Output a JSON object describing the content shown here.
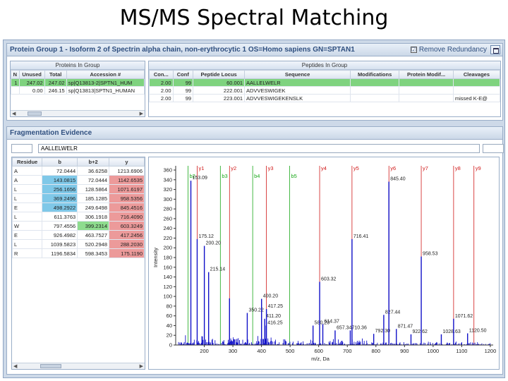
{
  "slide_title": "MS/MS Spectral Matching",
  "protein_window": {
    "title": "Protein Group 1 - Isoform 2 of Spectrin alpha chain, non-erythrocytic 1 OS=Homo sapiens GN=SPTAN1",
    "remove_redundancy_label": "Remove Redundancy",
    "remove_redundancy_checked": "☑",
    "proteins_panel_title": "Proteins In Group",
    "protein_columns": [
      "N",
      "Unused",
      "Total",
      "Accession #"
    ],
    "protein_rows": [
      [
        "1",
        "247.02",
        "247.02",
        "sp|Q13813-2|SPTN1_HUM"
      ],
      [
        "",
        "0.00",
        "246.15",
        "sp|Q13813|SPTN1_HUMAN"
      ]
    ],
    "peptides_panel_title": "Peptides In Group",
    "peptide_columns": [
      "Con...",
      "Conf",
      "Peptide Locus",
      "Sequence",
      "Modifications",
      "Protein Modif...",
      "Cleavages"
    ],
    "peptide_rows": [
      [
        "2.00",
        "99",
        "60.001",
        "AALLELWELR",
        "",
        "",
        ""
      ],
      [
        "2.00",
        "99",
        "222.001",
        "ADVVESWIGEK",
        "",
        "",
        ""
      ],
      [
        "2.00",
        "99",
        "223.001",
        "ADVVESWIGEKENSLK",
        "",
        "",
        "missed K-E@"
      ]
    ]
  },
  "frag_window": {
    "title": "Fragmentation Evidence",
    "sequence": "AALLELWELR",
    "columns": [
      "Residue",
      "b",
      "b+2",
      "y"
    ],
    "rows": [
      [
        "A",
        "72.0444",
        "36.6258",
        "1213.6906"
      ],
      [
        "A",
        "143.0815",
        "72.0444",
        "1142.6535"
      ],
      [
        "L",
        "256.1656",
        "128.5864",
        "1071.6197"
      ],
      [
        "L",
        "369.2496",
        "185.1285",
        "958.5356"
      ],
      [
        "E",
        "498.2922",
        "249.6498",
        "845.4516"
      ],
      [
        "L",
        "611.3763",
        "306.1918",
        "716.4090"
      ],
      [
        "W",
        "797.4556",
        "399.2314",
        "603.3249"
      ],
      [
        "E",
        "926.4982",
        "463.7527",
        "417.2456"
      ],
      [
        "L",
        "1039.5823",
        "520.2948",
        "288.2030"
      ],
      [
        "R",
        "1196.5834",
        "598.3453",
        "175.1190"
      ]
    ]
  },
  "chart_data": {
    "type": "bar",
    "title": "",
    "xlabel": "m/z, Da",
    "ylabel": "Intensity",
    "xlim": [
      100,
      1210
    ],
    "ylim": [
      0,
      360
    ],
    "xticks": [
      200,
      300,
      400,
      500,
      600,
      700,
      800,
      900,
      1000,
      1100,
      1200
    ],
    "yticks": [
      0,
      20,
      40,
      60,
      80,
      100,
      120,
      140,
      160,
      180,
      200,
      220,
      240,
      260,
      280,
      300,
      320,
      340,
      360
    ],
    "colors": {
      "peaks": "#1010c8",
      "y_lines": "#d01818",
      "b_lines": "#18a818",
      "labels": "#222222"
    },
    "ion_markers": [
      {
        "label": "y1",
        "x": 175.1,
        "color": "#d01818"
      },
      {
        "label": "y2",
        "x": 288.2,
        "color": "#d01818"
      },
      {
        "label": "y3",
        "x": 417.2,
        "color": "#d01818"
      },
      {
        "label": "y4",
        "x": 603.3,
        "color": "#d01818"
      },
      {
        "label": "y5",
        "x": 716.4,
        "color": "#d01818"
      },
      {
        "label": "y6",
        "x": 845.5,
        "color": "#d01818"
      },
      {
        "label": "y7",
        "x": 958.5,
        "color": "#d01818"
      },
      {
        "label": "y8",
        "x": 1071.6,
        "color": "#d01818"
      },
      {
        "label": "y9",
        "x": 1142.7,
        "color": "#d01818"
      },
      {
        "label": "b2",
        "x": 143.1,
        "color": "#18a818"
      },
      {
        "label": "b3",
        "x": 256.2,
        "color": "#18a818"
      },
      {
        "label": "b4",
        "x": 369.2,
        "color": "#18a818"
      },
      {
        "label": "b5",
        "x": 498.3,
        "color": "#18a818"
      }
    ],
    "peaks": [
      {
        "x": 153.09,
        "y": 338,
        "label": "153.09"
      },
      {
        "x": 175.12,
        "y": 218,
        "label": "175.12"
      },
      {
        "x": 200.2,
        "y": 204,
        "label": "200.20"
      },
      {
        "x": 215.14,
        "y": 150,
        "label": "215.14"
      },
      {
        "x": 288.2,
        "y": 96,
        "label": ""
      },
      {
        "x": 350.22,
        "y": 66,
        "label": "350.22"
      },
      {
        "x": 400.2,
        "y": 95,
        "label": "400.20"
      },
      {
        "x": 411.2,
        "y": 54,
        "label": "411.20"
      },
      {
        "x": 416.25,
        "y": 40,
        "label": "416.25"
      },
      {
        "x": 417.25,
        "y": 74,
        "label": "417.25"
      },
      {
        "x": 580.2,
        "y": 40,
        "label": "580.20"
      },
      {
        "x": 603.3,
        "y": 130,
        "label": "603.32"
      },
      {
        "x": 614.37,
        "y": 43,
        "label": "614.37"
      },
      {
        "x": 657.34,
        "y": 30,
        "label": "657.34"
      },
      {
        "x": 710.36,
        "y": 30,
        "label": "710.36"
      },
      {
        "x": 716.41,
        "y": 218,
        "label": "716.41"
      },
      {
        "x": 792.3,
        "y": 23,
        "label": "792.30"
      },
      {
        "x": 827.44,
        "y": 62,
        "label": "827.44"
      },
      {
        "x": 845.4,
        "y": 336,
        "label": "845.40"
      },
      {
        "x": 871.47,
        "y": 33,
        "label": "871.47"
      },
      {
        "x": 922.62,
        "y": 22,
        "label": "922.62"
      },
      {
        "x": 958.53,
        "y": 182,
        "label": "958.53"
      },
      {
        "x": 1028.63,
        "y": 22,
        "label": "1028.63"
      },
      {
        "x": 1071.62,
        "y": 54,
        "label": "1071.62"
      },
      {
        "x": 1120.5,
        "y": 24,
        "label": "1120.50"
      }
    ]
  }
}
